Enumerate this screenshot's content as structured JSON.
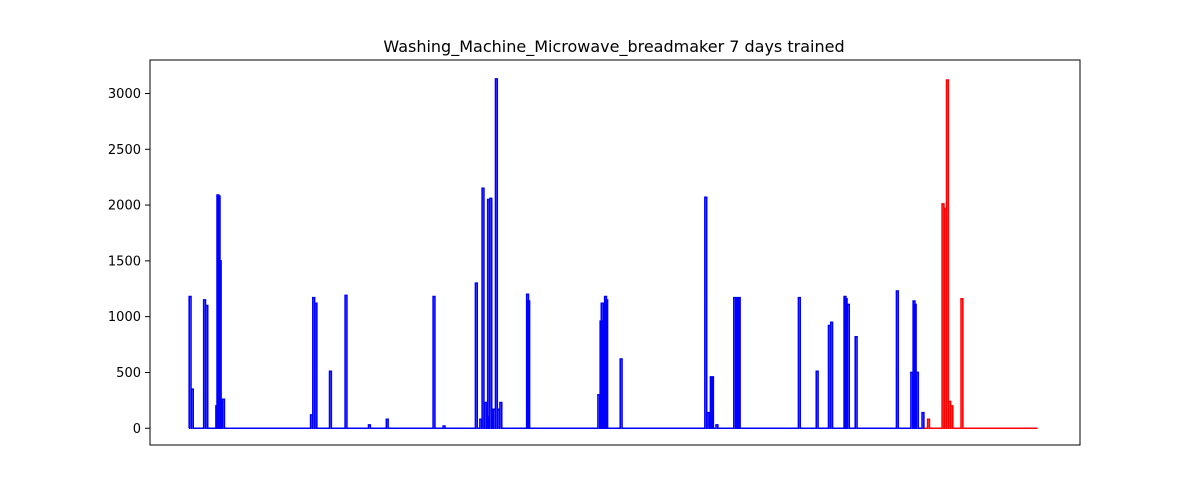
{
  "chart_data": {
    "type": "line",
    "title": "Washing_Machine_Microwave_breadmaker 7 days trained",
    "xlabel": "",
    "ylabel": "",
    "xlim": [
      -0.35,
      8.0
    ],
    "ylim": [
      -150,
      3300
    ],
    "yticks": [
      0,
      500,
      1000,
      1500,
      2000,
      2500,
      3000
    ],
    "ytick_labels": [
      "0",
      "500",
      "1000",
      "1500",
      "2000",
      "2500",
      "3000"
    ],
    "x_axis_ticks_visible": false,
    "grid": false,
    "series": [
      {
        "color": "#0000ff",
        "spikes": [
          [
            0.01,
            1180
          ],
          [
            0.03,
            350
          ],
          [
            0.14,
            1150
          ],
          [
            0.16,
            1100
          ],
          [
            0.25,
            200
          ],
          [
            0.26,
            2090
          ],
          [
            0.27,
            2080
          ],
          [
            0.28,
            1500
          ],
          [
            0.29,
            250
          ],
          [
            0.31,
            260
          ],
          [
            1.1,
            120
          ],
          [
            1.12,
            1170
          ],
          [
            1.14,
            1120
          ],
          [
            1.27,
            510
          ],
          [
            1.41,
            1190
          ],
          [
            1.62,
            30
          ],
          [
            1.78,
            80
          ],
          [
            2.2,
            1180
          ],
          [
            2.29,
            20
          ],
          [
            2.58,
            1300
          ],
          [
            2.62,
            80
          ],
          [
            2.64,
            2150
          ],
          [
            2.66,
            230
          ],
          [
            2.68,
            100
          ],
          [
            2.69,
            2050
          ],
          [
            2.71,
            2060
          ],
          [
            2.74,
            170
          ],
          [
            2.76,
            3130
          ],
          [
            2.78,
            170
          ],
          [
            2.8,
            230
          ],
          [
            3.04,
            1200
          ],
          [
            3.05,
            1140
          ],
          [
            3.68,
            300
          ],
          [
            3.7,
            960
          ],
          [
            3.71,
            1120
          ],
          [
            3.73,
            1120
          ],
          [
            3.74,
            1180
          ],
          [
            3.75,
            1150
          ],
          [
            3.88,
            620
          ],
          [
            4.64,
            2070
          ],
          [
            4.66,
            140
          ],
          [
            4.69,
            460
          ],
          [
            4.7,
            460
          ],
          [
            4.74,
            30
          ],
          [
            4.9,
            1170
          ],
          [
            4.93,
            1170
          ],
          [
            4.94,
            1170
          ],
          [
            5.48,
            1170
          ],
          [
            5.64,
            510
          ],
          [
            5.75,
            920
          ],
          [
            5.77,
            950
          ],
          [
            5.89,
            1180
          ],
          [
            5.9,
            1160
          ],
          [
            5.92,
            1110
          ],
          [
            5.99,
            820
          ],
          [
            6.36,
            1230
          ],
          [
            6.49,
            500
          ],
          [
            6.51,
            1140
          ],
          [
            6.52,
            1110
          ],
          [
            6.54,
            500
          ],
          [
            6.59,
            140
          ]
        ]
      },
      {
        "color": "#ff0000",
        "spikes": [
          [
            6.64,
            80
          ],
          [
            6.77,
            2010
          ],
          [
            6.79,
            1970
          ],
          [
            6.81,
            3120
          ],
          [
            6.83,
            240
          ],
          [
            6.85,
            200
          ],
          [
            6.94,
            1160
          ]
        ]
      }
    ],
    "series_x_ranges": [
      [
        0.0,
        6.62
      ],
      [
        6.6,
        7.62
      ]
    ]
  }
}
